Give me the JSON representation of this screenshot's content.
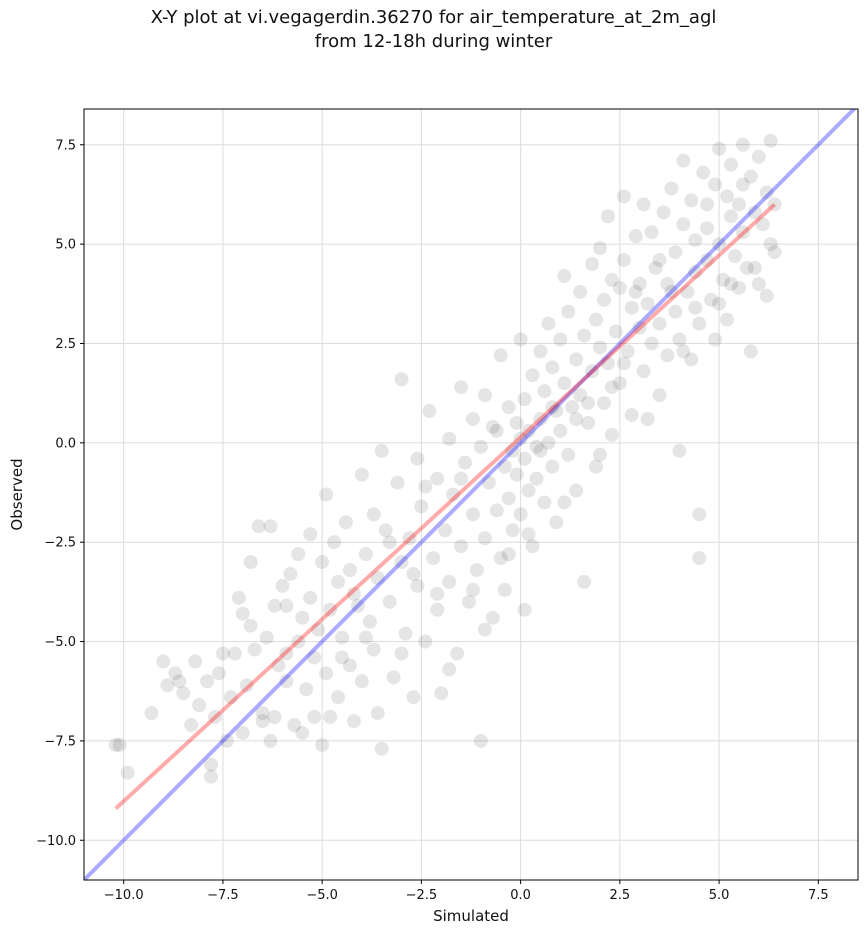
{
  "chart_data": {
    "type": "scatter",
    "title": "X-Y plot at vi.vegagerdin.36270 for air_temperature_at_2m_agl",
    "subtitle": "from 12-18h during winter",
    "xlabel": "Simulated",
    "ylabel": "Observed",
    "xlim": [
      -11.0,
      8.5
    ],
    "ylim": [
      -11.0,
      8.4
    ],
    "x_ticks": [
      -10.0,
      -7.5,
      -5.0,
      -2.5,
      0.0,
      2.5,
      5.0,
      7.5
    ],
    "y_ticks": [
      -10.0,
      -7.5,
      -5.0,
      -2.5,
      0.0,
      2.5,
      5.0,
      7.5
    ],
    "x_tick_labels": [
      "−10.0",
      "−7.5",
      "−5.0",
      "−2.5",
      "0.0",
      "2.5",
      "5.0",
      "7.5"
    ],
    "y_tick_labels": [
      "−10.0",
      "−7.5",
      "−5.0",
      "−2.5",
      "0.0",
      "2.5",
      "5.0",
      "7.5"
    ],
    "grid": true,
    "point_color": "#000000",
    "fit_line": {
      "x": [
        -10.2,
        6.4
      ],
      "y": [
        -9.2,
        6.0
      ],
      "color": "#ff0000"
    },
    "identity_line": {
      "x": [
        -11.0,
        8.5
      ],
      "y": [
        -11.0,
        8.5
      ],
      "color": "#0000ff"
    },
    "points": [
      [
        -10.1,
        -7.6
      ],
      [
        -10.2,
        -7.6
      ],
      [
        -9.9,
        -8.3
      ],
      [
        -9.3,
        -6.8
      ],
      [
        -9.0,
        -5.5
      ],
      [
        -8.9,
        -6.1
      ],
      [
        -8.7,
        -5.8
      ],
      [
        -8.6,
        -6.0
      ],
      [
        -8.5,
        -6.3
      ],
      [
        -8.3,
        -7.1
      ],
      [
        -8.2,
        -5.5
      ],
      [
        -8.1,
        -6.6
      ],
      [
        -7.9,
        -6.0
      ],
      [
        -7.8,
        -8.1
      ],
      [
        -7.8,
        -8.4
      ],
      [
        -7.7,
        -6.9
      ],
      [
        -7.6,
        -5.8
      ],
      [
        -7.5,
        -5.3
      ],
      [
        -7.4,
        -7.5
      ],
      [
        -7.3,
        -6.4
      ],
      [
        -7.2,
        -5.3
      ],
      [
        -7.1,
        -3.9
      ],
      [
        -7.0,
        -4.3
      ],
      [
        -7.0,
        -7.3
      ],
      [
        -6.9,
        -6.1
      ],
      [
        -6.8,
        -3.0
      ],
      [
        -6.8,
        -4.6
      ],
      [
        -6.7,
        -5.2
      ],
      [
        -6.6,
        -2.1
      ],
      [
        -6.5,
        -6.8
      ],
      [
        -6.4,
        -4.9
      ],
      [
        -6.3,
        -2.1
      ],
      [
        -6.3,
        -7.5
      ],
      [
        -6.2,
        -4.1
      ],
      [
        -6.1,
        -5.6
      ],
      [
        -6.0,
        -3.6
      ],
      [
        -5.9,
        -6.0
      ],
      [
        -5.9,
        -4.1
      ],
      [
        -5.8,
        -3.3
      ],
      [
        -5.7,
        -7.1
      ],
      [
        -5.6,
        -5.0
      ],
      [
        -5.6,
        -2.8
      ],
      [
        -5.5,
        -4.4
      ],
      [
        -5.4,
        -6.2
      ],
      [
        -5.3,
        -2.3
      ],
      [
        -5.3,
        -3.9
      ],
      [
        -5.2,
        -5.4
      ],
      [
        -5.1,
        -4.7
      ],
      [
        -5.0,
        -7.6
      ],
      [
        -5.0,
        -3.0
      ],
      [
        -4.9,
        -1.3
      ],
      [
        -4.9,
        -5.8
      ],
      [
        -4.8,
        -4.2
      ],
      [
        -4.7,
        -2.5
      ],
      [
        -4.6,
        -6.4
      ],
      [
        -4.6,
        -3.5
      ],
      [
        -4.5,
        -4.9
      ],
      [
        -4.4,
        -2.0
      ],
      [
        -4.3,
        -5.6
      ],
      [
        -4.3,
        -3.2
      ],
      [
        -4.2,
        -7.0
      ],
      [
        -4.1,
        -4.1
      ],
      [
        -4.0,
        -0.8
      ],
      [
        -4.0,
        -6.0
      ],
      [
        -3.9,
        -2.8
      ],
      [
        -3.8,
        -4.5
      ],
      [
        -3.7,
        -1.8
      ],
      [
        -3.7,
        -5.2
      ],
      [
        -3.6,
        -3.4
      ],
      [
        -3.5,
        -7.7
      ],
      [
        -3.5,
        -0.2
      ],
      [
        -3.4,
        -2.2
      ],
      [
        -3.3,
        -4.0
      ],
      [
        -3.2,
        -5.9
      ],
      [
        -3.1,
        -1.0
      ],
      [
        -3.0,
        -3.0
      ],
      [
        -3.0,
        1.6
      ],
      [
        -2.9,
        -4.8
      ],
      [
        -2.8,
        -2.4
      ],
      [
        -2.7,
        -6.4
      ],
      [
        -2.6,
        -0.4
      ],
      [
        -2.6,
        -3.6
      ],
      [
        -2.5,
        -1.6
      ],
      [
        -2.4,
        -5.0
      ],
      [
        -2.3,
        0.8
      ],
      [
        -2.2,
        -2.9
      ],
      [
        -2.1,
        -4.2
      ],
      [
        -2.1,
        -0.9
      ],
      [
        -2.0,
        -6.3
      ],
      [
        -1.9,
        -2.2
      ],
      [
        -1.8,
        0.1
      ],
      [
        -1.8,
        -3.5
      ],
      [
        -1.7,
        -1.3
      ],
      [
        -1.6,
        -5.3
      ],
      [
        -1.5,
        1.4
      ],
      [
        -1.5,
        -2.6
      ],
      [
        -1.4,
        -0.5
      ],
      [
        -1.3,
        -4.0
      ],
      [
        -1.2,
        -1.8
      ],
      [
        -1.2,
        0.6
      ],
      [
        -1.1,
        -3.2
      ],
      [
        -1.0,
        -7.5
      ],
      [
        -1.0,
        -0.1
      ],
      [
        -0.9,
        1.2
      ],
      [
        -0.9,
        -2.4
      ],
      [
        -0.8,
        -1.0
      ],
      [
        -0.7,
        -4.4
      ],
      [
        -0.7,
        0.4
      ],
      [
        -0.6,
        -1.7
      ],
      [
        -0.5,
        -2.9
      ],
      [
        -0.5,
        2.2
      ],
      [
        -0.4,
        -0.6
      ],
      [
        -0.4,
        -3.7
      ],
      [
        -0.3,
        0.9
      ],
      [
        -0.3,
        -1.4
      ],
      [
        -0.2,
        -0.2
      ],
      [
        -0.2,
        -2.2
      ],
      [
        -0.1,
        0.5
      ],
      [
        -0.1,
        -0.8
      ],
      [
        0.0,
        -1.8
      ],
      [
        0.0,
        0.1
      ],
      [
        0.0,
        2.6
      ],
      [
        0.1,
        -0.4
      ],
      [
        0.1,
        -4.2
      ],
      [
        0.1,
        1.1
      ],
      [
        0.2,
        -1.2
      ],
      [
        0.2,
        0.3
      ],
      [
        0.3,
        -2.6
      ],
      [
        0.3,
        1.7
      ],
      [
        0.4,
        -0.1
      ],
      [
        0.4,
        -0.9
      ],
      [
        0.5,
        2.3
      ],
      [
        0.5,
        0.6
      ],
      [
        0.6,
        -1.5
      ],
      [
        0.6,
        1.3
      ],
      [
        0.7,
        0.0
      ],
      [
        0.7,
        3.0
      ],
      [
        0.8,
        -0.6
      ],
      [
        0.8,
        1.9
      ],
      [
        0.9,
        0.8
      ],
      [
        0.9,
        -2.0
      ],
      [
        1.0,
        2.6
      ],
      [
        1.0,
        0.3
      ],
      [
        1.1,
        4.2
      ],
      [
        1.1,
        1.5
      ],
      [
        1.2,
        -0.3
      ],
      [
        1.2,
        3.3
      ],
      [
        1.3,
        0.9
      ],
      [
        1.4,
        2.1
      ],
      [
        1.4,
        -1.2
      ],
      [
        1.5,
        3.8
      ],
      [
        1.5,
        1.2
      ],
      [
        1.6,
        -3.5
      ],
      [
        1.6,
        2.7
      ],
      [
        1.7,
        0.5
      ],
      [
        1.8,
        4.5
      ],
      [
        1.8,
        1.8
      ],
      [
        1.9,
        3.1
      ],
      [
        1.9,
        -0.6
      ],
      [
        2.0,
        2.4
      ],
      [
        2.0,
        4.9
      ],
      [
        2.1,
        1.0
      ],
      [
        2.1,
        3.6
      ],
      [
        2.2,
        5.7
      ],
      [
        2.2,
        2.0
      ],
      [
        2.3,
        4.1
      ],
      [
        2.3,
        0.2
      ],
      [
        2.4,
        2.8
      ],
      [
        2.5,
        3.9
      ],
      [
        2.5,
        1.5
      ],
      [
        2.6,
        4.6
      ],
      [
        2.6,
        6.2
      ],
      [
        2.7,
        2.3
      ],
      [
        2.8,
        3.4
      ],
      [
        2.8,
        0.7
      ],
      [
        2.9,
        5.2
      ],
      [
        3.0,
        2.9
      ],
      [
        3.0,
        4.0
      ],
      [
        3.1,
        6.0
      ],
      [
        3.1,
        1.8
      ],
      [
        3.2,
        3.5
      ],
      [
        3.3,
        5.3
      ],
      [
        3.3,
        2.5
      ],
      [
        3.4,
        4.4
      ],
      [
        3.5,
        1.2
      ],
      [
        3.5,
        3.0
      ],
      [
        3.6,
        5.8
      ],
      [
        3.7,
        4.0
      ],
      [
        3.7,
        2.2
      ],
      [
        3.8,
        6.4
      ],
      [
        3.9,
        3.3
      ],
      [
        3.9,
        4.8
      ],
      [
        4.0,
        2.6
      ],
      [
        4.0,
        -0.2
      ],
      [
        4.1,
        7.1
      ],
      [
        4.1,
        5.5
      ],
      [
        4.2,
        3.8
      ],
      [
        4.3,
        2.1
      ],
      [
        4.3,
        6.1
      ],
      [
        4.4,
        4.3
      ],
      [
        4.4,
        5.1
      ],
      [
        4.5,
        -1.8
      ],
      [
        4.5,
        -2.9
      ],
      [
        4.5,
        3.0
      ],
      [
        4.6,
        6.8
      ],
      [
        4.7,
        4.6
      ],
      [
        4.7,
        5.4
      ],
      [
        4.8,
        3.6
      ],
      [
        4.9,
        6.5
      ],
      [
        4.9,
        2.6
      ],
      [
        5.0,
        7.4
      ],
      [
        5.0,
        5.0
      ],
      [
        5.1,
        4.1
      ],
      [
        5.2,
        6.2
      ],
      [
        5.2,
        3.1
      ],
      [
        5.3,
        5.7
      ],
      [
        5.3,
        7.0
      ],
      [
        5.4,
        4.7
      ],
      [
        5.5,
        6.0
      ],
      [
        5.5,
        3.9
      ],
      [
        5.6,
        7.5
      ],
      [
        5.6,
        5.3
      ],
      [
        5.7,
        4.4
      ],
      [
        5.8,
        6.7
      ],
      [
        5.8,
        2.3
      ],
      [
        5.9,
        5.8
      ],
      [
        6.0,
        4.0
      ],
      [
        6.0,
        7.2
      ],
      [
        6.1,
        5.5
      ],
      [
        6.2,
        6.3
      ],
      [
        6.2,
        3.7
      ],
      [
        6.3,
        7.6
      ],
      [
        6.3,
        5.0
      ],
      [
        6.4,
        6.0
      ],
      [
        6.4,
        4.8
      ],
      [
        -6.5,
        -7.0
      ],
      [
        -6.2,
        -6.9
      ],
      [
        -5.9,
        -5.3
      ],
      [
        -5.5,
        -7.3
      ],
      [
        -5.2,
        -6.9
      ],
      [
        -4.8,
        -6.9
      ],
      [
        -4.5,
        -5.4
      ],
      [
        -4.2,
        -3.8
      ],
      [
        -3.9,
        -4.9
      ],
      [
        -3.6,
        -6.8
      ],
      [
        -3.3,
        -2.5
      ],
      [
        -3.0,
        -5.3
      ],
      [
        -2.7,
        -3.3
      ],
      [
        -2.4,
        -1.1
      ],
      [
        -2.1,
        -3.8
      ],
      [
        -1.8,
        -5.7
      ],
      [
        -1.5,
        -0.9
      ],
      [
        -1.2,
        -3.7
      ],
      [
        -0.9,
        -4.7
      ],
      [
        -0.6,
        0.3
      ],
      [
        -0.3,
        -2.8
      ],
      [
        0.2,
        -2.3
      ],
      [
        0.5,
        -0.2
      ],
      [
        0.8,
        0.9
      ],
      [
        1.1,
        -1.5
      ],
      [
        1.4,
        0.6
      ],
      [
        1.7,
        1.0
      ],
      [
        2.0,
        -0.3
      ],
      [
        2.3,
        1.4
      ],
      [
        2.6,
        2.0
      ],
      [
        2.9,
        3.8
      ],
      [
        3.2,
        0.6
      ],
      [
        3.5,
        4.6
      ],
      [
        3.8,
        3.8
      ],
      [
        4.1,
        2.3
      ],
      [
        4.4,
        3.4
      ],
      [
        4.7,
        6.0
      ],
      [
        5.0,
        3.5
      ],
      [
        5.3,
        4.0
      ],
      [
        5.6,
        6.5
      ],
      [
        5.9,
        4.4
      ]
    ]
  }
}
